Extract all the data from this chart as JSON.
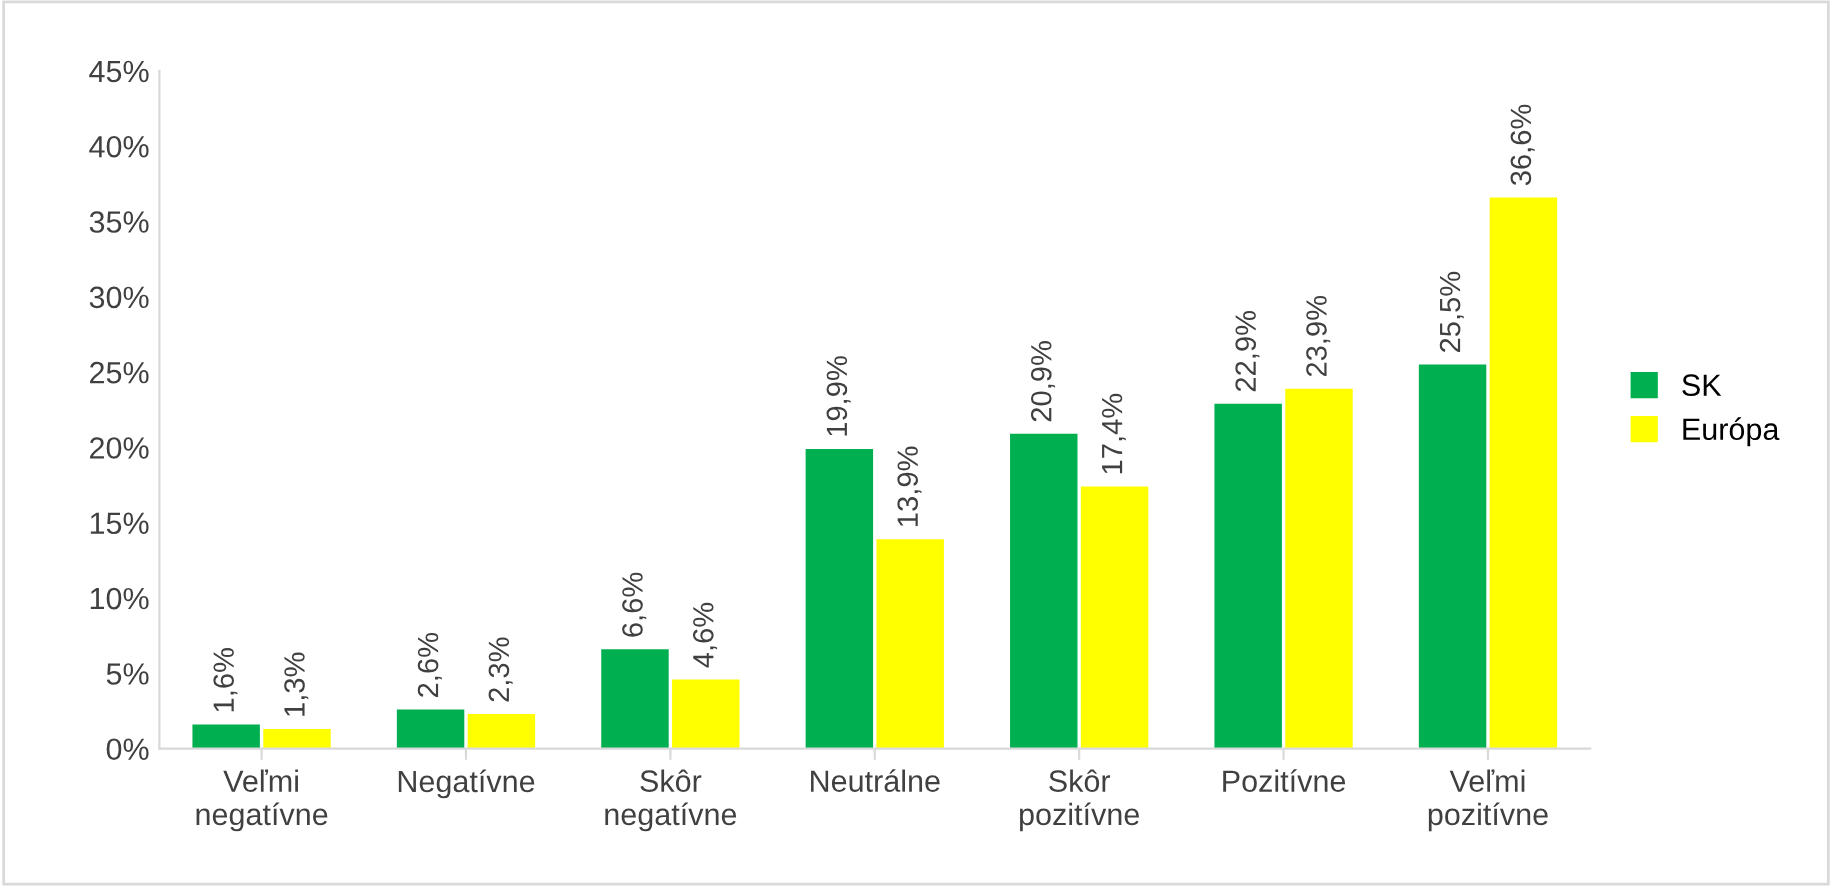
{
  "chart_data": {
    "type": "bar",
    "categories": [
      "Veľmi negatívne",
      "Negatívne",
      "Skôr negatívne",
      "Neutrálne",
      "Skôr pozitívne",
      "Pozitívne",
      "Veľmi pozitívne"
    ],
    "series": [
      {
        "name": "SK",
        "color": "#00b050",
        "values": [
          1.6,
          2.6,
          6.6,
          19.9,
          20.9,
          22.9,
          25.5
        ],
        "value_labels": [
          "1,6%",
          "2,6%",
          "6,6%",
          "19,9%",
          "20,9%",
          "22,9%",
          "25,5%"
        ]
      },
      {
        "name": "Európa",
        "color": "#ffff00",
        "values": [
          1.3,
          2.3,
          4.6,
          13.9,
          17.4,
          23.9,
          36.6
        ],
        "value_labels": [
          "1,3%",
          "2,3%",
          "4,6%",
          "13,9%",
          "17,4%",
          "23,9%",
          "36,6%"
        ]
      }
    ],
    "ylim": [
      0,
      45
    ],
    "yticks": [
      {
        "value": 0,
        "label": "0%"
      },
      {
        "value": 5,
        "label": "5%"
      },
      {
        "value": 10,
        "label": "10%"
      },
      {
        "value": 15,
        "label": "15%"
      },
      {
        "value": 20,
        "label": "20%"
      },
      {
        "value": 25,
        "label": "25%"
      },
      {
        "value": 30,
        "label": "30%"
      },
      {
        "value": 35,
        "label": "35%"
      },
      {
        "value": 40,
        "label": "40%"
      },
      {
        "value": 45,
        "label": "45%"
      }
    ],
    "grid": false,
    "legend": "right"
  }
}
